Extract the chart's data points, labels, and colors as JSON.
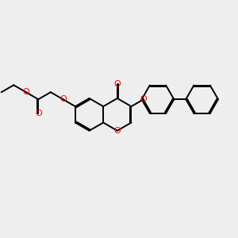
{
  "bg_color": "#eeeeee",
  "bond_color": "#000000",
  "o_color": "#ff0000",
  "lw": 1.4,
  "dbo": 0.028,
  "figsize": [
    3.0,
    3.0
  ],
  "dpi": 100,
  "xlim": [
    -2.5,
    2.8
  ],
  "ylim": [
    -1.5,
    1.4
  ]
}
